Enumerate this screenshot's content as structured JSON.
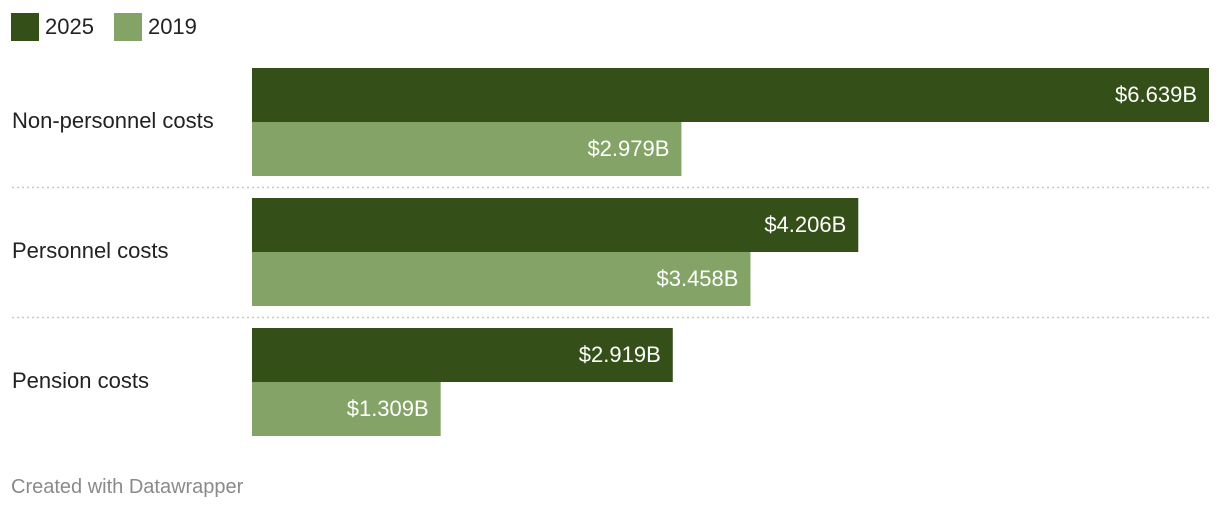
{
  "chart_data": {
    "type": "bar",
    "orientation": "horizontal",
    "categories": [
      "Non-personnel costs",
      "Personnel costs",
      "Pension costs"
    ],
    "series": [
      {
        "name": "2025",
        "color": "#344f18",
        "values": [
          6.639,
          4.206,
          2.919
        ],
        "labels": [
          "$6.639B",
          "$4.206B",
          "$2.919B"
        ]
      },
      {
        "name": "2019",
        "color": "#84a366",
        "values": [
          2.979,
          3.458,
          1.309
        ],
        "labels": [
          "$2.979B",
          "$3.458B",
          "$1.309B"
        ]
      }
    ],
    "value_unit": "$B",
    "xlim": [
      0,
      6.639
    ],
    "legend_position": "top-left",
    "grid": false
  },
  "credit": "Created with Datawrapper"
}
